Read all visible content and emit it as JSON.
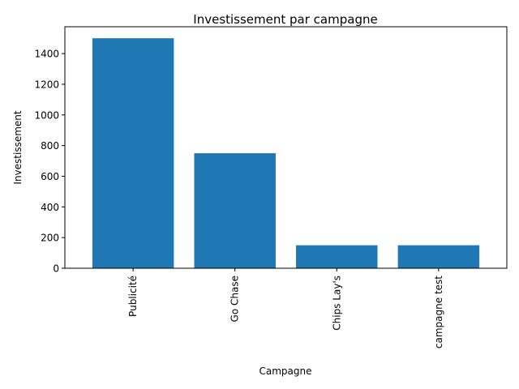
{
  "chart_data": {
    "type": "bar",
    "title": "Investissement par campagne",
    "xlabel": "Campagne",
    "ylabel": "Investissement",
    "categories": [
      "Publicité",
      "Go Chase",
      "Chips Lay's",
      "campagne test"
    ],
    "values": [
      1500,
      750,
      150,
      150
    ],
    "ylim": [
      0,
      1575
    ],
    "yticks": [
      0,
      200,
      400,
      600,
      800,
      1000,
      1200,
      1400
    ],
    "bar_color": "#1f77b4",
    "grid": false,
    "legend": "none"
  }
}
